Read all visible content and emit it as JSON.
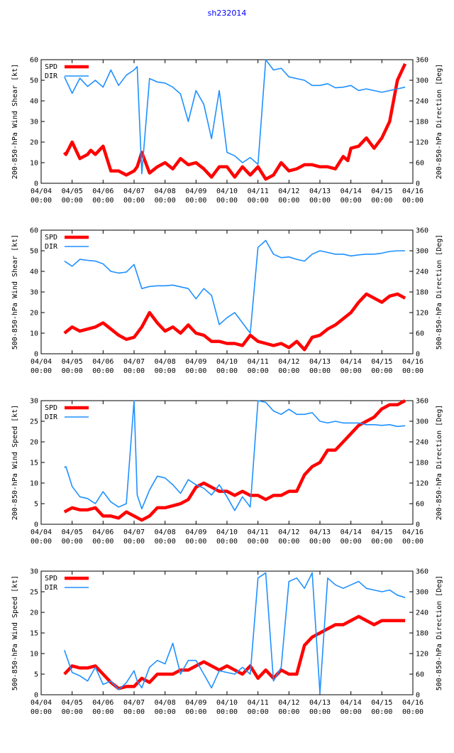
{
  "title": "sh232014",
  "colors": {
    "spd": "#ff0000",
    "dir": "#1e90ff",
    "axis": "#000000"
  },
  "x_ticks": [
    [
      "04/04",
      "00:00"
    ],
    [
      "04/05",
      "00:00"
    ],
    [
      "04/06",
      "00:00"
    ],
    [
      "04/07",
      "00:00"
    ],
    [
      "04/08",
      "00:00"
    ],
    [
      "04/09",
      "00:00"
    ],
    [
      "04/10",
      "00:00"
    ],
    [
      "04/11",
      "00:00"
    ],
    [
      "04/12",
      "00:00"
    ],
    [
      "04/13",
      "00:00"
    ],
    [
      "04/14",
      "00:00"
    ],
    [
      "04/15",
      "00:00"
    ],
    [
      "04/16",
      "00:00"
    ]
  ],
  "chart_data": [
    {
      "type": "line",
      "ylabel": "200-850-hPa Wind Shear [kt]",
      "y2label": "200-850-hPa Direction [Deg]",
      "ylim": [
        0,
        60
      ],
      "yticks": [
        0,
        10,
        20,
        30,
        40,
        50,
        60
      ],
      "y2lim": [
        0,
        360
      ],
      "y2ticks": [
        0,
        60,
        120,
        180,
        240,
        300,
        360
      ],
      "xlim": [
        0,
        12
      ],
      "legend": [
        "SPD",
        "DIR"
      ],
      "series": [
        {
          "name": "SPD",
          "axis": "left",
          "x": [
            0.75,
            0.8,
            1.0,
            1.25,
            1.5,
            1.6,
            1.75,
            2.0,
            2.25,
            2.5,
            2.75,
            3.0,
            3.1,
            3.25,
            3.5,
            3.75,
            4.0,
            4.25,
            4.5,
            4.75,
            5.0,
            5.25,
            5.5,
            5.75,
            6.0,
            6.25,
            6.5,
            6.75,
            7.0,
            7.25,
            7.5,
            7.75,
            8.0,
            8.25,
            8.5,
            8.75,
            9.0,
            9.25,
            9.5,
            9.75,
            9.9,
            10.0,
            10.25,
            10.5,
            10.75,
            11.0,
            11.25,
            11.5,
            11.75
          ],
          "values": [
            15,
            14,
            20,
            12,
            14,
            16,
            14,
            18,
            6,
            6,
            4,
            6,
            8,
            15,
            5,
            8,
            10,
            7,
            12,
            9,
            10,
            7,
            3,
            8,
            8,
            3,
            8,
            4,
            8,
            2,
            4,
            10,
            6,
            7,
            9,
            9,
            8,
            8,
            7,
            13,
            11,
            17,
            18,
            22,
            17,
            22,
            30,
            50,
            58
          ]
        },
        {
          "name": "DIR",
          "axis": "right",
          "x": [
            0.75,
            1.0,
            1.25,
            1.5,
            1.75,
            2.0,
            2.25,
            2.5,
            2.75,
            3.0,
            3.1,
            3.25,
            3.5,
            3.75,
            4.0,
            4.25,
            4.5,
            4.75,
            5.0,
            5.25,
            5.5,
            5.75,
            6.0,
            6.25,
            6.5,
            6.75,
            7.0,
            7.25,
            7.5,
            7.75,
            8.0,
            8.25,
            8.5,
            8.75,
            9.0,
            9.25,
            9.5,
            9.75,
            10.0,
            10.25,
            10.5,
            10.75,
            11.0,
            11.25,
            11.5,
            11.75
          ],
          "values": [
            310,
            262,
            306,
            282,
            300,
            280,
            330,
            285,
            315,
            330,
            340,
            28,
            305,
            295,
            292,
            280,
            260,
            180,
            270,
            230,
            130,
            270,
            90,
            80,
            60,
            75,
            55,
            360,
            330,
            335,
            310,
            305,
            300,
            285,
            285,
            290,
            278,
            280,
            285,
            270,
            275,
            270,
            265,
            270,
            275,
            280
          ]
        }
      ]
    },
    {
      "type": "line",
      "ylabel": "500-850-hPa Wind Shear [kt]",
      "y2label": "500-850-hPa Direction [Deg]",
      "ylim": [
        0,
        60
      ],
      "yticks": [
        0,
        10,
        20,
        30,
        40,
        50,
        60
      ],
      "y2lim": [
        0,
        360
      ],
      "y2ticks": [
        0,
        60,
        120,
        180,
        240,
        300,
        360
      ],
      "xlim": [
        0,
        12
      ],
      "legend": [
        "SPD",
        "DIR"
      ],
      "series": [
        {
          "name": "SPD",
          "axis": "left",
          "x": [
            0.75,
            1.0,
            1.25,
            1.5,
            1.75,
            2.0,
            2.25,
            2.5,
            2.75,
            3.0,
            3.25,
            3.5,
            3.75,
            4.0,
            4.25,
            4.5,
            4.75,
            5.0,
            5.25,
            5.5,
            5.75,
            6.0,
            6.25,
            6.5,
            6.75,
            7.0,
            7.25,
            7.5,
            7.75,
            8.0,
            8.25,
            8.5,
            8.75,
            9.0,
            9.25,
            9.5,
            9.75,
            10.0,
            10.25,
            10.5,
            10.75,
            11.0,
            11.25,
            11.5,
            11.75
          ],
          "values": [
            10,
            13,
            11,
            12,
            13,
            15,
            12,
            9,
            7,
            8,
            13,
            20,
            15,
            11,
            13,
            10,
            14,
            10,
            9,
            6,
            6,
            5,
            5,
            4,
            9,
            6,
            5,
            4,
            5,
            3,
            6,
            2,
            8,
            9,
            12,
            14,
            17,
            20,
            25,
            29,
            27,
            25,
            28,
            29,
            27
          ]
        },
        {
          "name": "DIR",
          "axis": "right",
          "x": [
            0.75,
            1.0,
            1.25,
            1.5,
            1.75,
            2.0,
            2.25,
            2.5,
            2.75,
            3.0,
            3.25,
            3.5,
            3.75,
            4.0,
            4.25,
            4.5,
            4.75,
            5.0,
            5.25,
            5.5,
            5.75,
            6.0,
            6.25,
            6.5,
            6.75,
            7.0,
            7.25,
            7.5,
            7.75,
            8.0,
            8.25,
            8.5,
            8.75,
            9.0,
            9.25,
            9.5,
            9.75,
            10.0,
            10.25,
            10.5,
            10.75,
            11.0,
            11.25,
            11.5,
            11.75
          ],
          "values": [
            270,
            255,
            275,
            272,
            270,
            262,
            240,
            235,
            238,
            260,
            190,
            196,
            198,
            198,
            200,
            195,
            190,
            160,
            190,
            170,
            85,
            105,
            120,
            90,
            60,
            310,
            330,
            290,
            280,
            282,
            275,
            270,
            290,
            300,
            295,
            290,
            290,
            285,
            288,
            290,
            290,
            293,
            298,
            300,
            300
          ]
        }
      ]
    },
    {
      "type": "line",
      "ylabel": "200-850-hPa Wind Speed [kt]",
      "y2label": "200-850-hPa Direction [Deg]",
      "ylim": [
        0,
        30
      ],
      "yticks": [
        0,
        5,
        10,
        15,
        20,
        25,
        30
      ],
      "y2lim": [
        0,
        360
      ],
      "y2ticks": [
        0,
        60,
        120,
        180,
        240,
        300,
        360
      ],
      "xlim": [
        0,
        12
      ],
      "legend": [
        "SPD",
        "DIR"
      ],
      "series": [
        {
          "name": "SPD",
          "axis": "left",
          "x": [
            0.75,
            1.0,
            1.25,
            1.5,
            1.75,
            2.0,
            2.25,
            2.5,
            2.75,
            3.0,
            3.25,
            3.5,
            3.75,
            4.0,
            4.25,
            4.5,
            4.75,
            5.0,
            5.25,
            5.5,
            5.75,
            6.0,
            6.25,
            6.5,
            6.75,
            7.0,
            7.25,
            7.5,
            7.75,
            8.0,
            8.25,
            8.5,
            8.75,
            9.0,
            9.25,
            9.5,
            9.75,
            10.0,
            10.25,
            10.5,
            10.75,
            11.0,
            11.25,
            11.5,
            11.75
          ],
          "values": [
            3,
            4,
            3.5,
            3.5,
            4,
            2,
            2,
            1.5,
            3,
            2,
            1,
            2,
            4,
            4,
            4.5,
            5,
            6,
            9,
            10,
            9,
            8,
            8,
            7,
            8,
            7,
            7,
            6,
            7,
            7,
            8,
            8,
            12,
            14,
            15,
            18,
            18,
            20,
            22,
            24,
            25,
            26,
            28,
            29,
            29,
            30
          ]
        },
        {
          "name": "DIR",
          "axis": "right",
          "x": [
            0.75,
            0.8,
            1.0,
            1.25,
            1.5,
            1.75,
            2.0,
            2.25,
            2.5,
            2.75,
            3.0,
            3.1,
            3.25,
            3.5,
            3.75,
            4.0,
            4.25,
            4.5,
            4.75,
            5.0,
            5.25,
            5.5,
            5.75,
            6.0,
            6.25,
            6.5,
            6.75,
            7.0,
            7.25,
            7.5,
            7.75,
            8.0,
            8.25,
            8.5,
            8.75,
            9.0,
            9.25,
            9.5,
            9.75,
            10.0,
            10.25,
            10.5,
            10.75,
            11.0,
            11.25,
            11.5,
            11.75
          ],
          "values": [
            165,
            168,
            110,
            80,
            75,
            60,
            95,
            65,
            50,
            60,
            360,
            85,
            45,
            100,
            140,
            135,
            115,
            90,
            130,
            115,
            105,
            85,
            115,
            80,
            40,
            80,
            50,
            360,
            355,
            330,
            320,
            335,
            320,
            320,
            325,
            300,
            295,
            300,
            295,
            295,
            295,
            290,
            290,
            288,
            290,
            285,
            287
          ]
        }
      ]
    },
    {
      "type": "line",
      "ylabel": "500-850-hPa Wind Speed [kt]",
      "y2label": "500-850-hPa Direction [Deg]",
      "ylim": [
        0,
        30
      ],
      "yticks": [
        0,
        5,
        10,
        15,
        20,
        25,
        30
      ],
      "y2lim": [
        0,
        360
      ],
      "y2ticks": [
        0,
        60,
        120,
        180,
        240,
        300,
        360
      ],
      "xlim": [
        0,
        12
      ],
      "legend": [
        "SPD",
        "DIR"
      ],
      "series": [
        {
          "name": "SPD",
          "axis": "left",
          "x": [
            0.75,
            1.0,
            1.25,
            1.5,
            1.75,
            2.0,
            2.25,
            2.5,
            2.75,
            3.0,
            3.25,
            3.5,
            3.75,
            4.0,
            4.25,
            4.5,
            4.75,
            5.0,
            5.25,
            5.5,
            5.75,
            6.0,
            6.25,
            6.5,
            6.75,
            7.0,
            7.25,
            7.5,
            7.75,
            8.0,
            8.25,
            8.5,
            8.75,
            9.0,
            9.25,
            9.5,
            9.75,
            10.0,
            10.25,
            10.5,
            10.75,
            11.0,
            11.25,
            11.5,
            11.75
          ],
          "values": [
            5,
            7,
            6.5,
            6.5,
            7,
            5,
            3,
            1.5,
            2,
            2,
            4,
            3,
            5,
            5,
            5,
            6,
            6,
            7,
            8,
            7,
            6,
            7,
            6,
            5,
            7,
            4,
            6,
            4,
            6,
            5,
            5,
            12,
            14,
            15,
            16,
            17,
            17,
            18,
            19,
            18,
            17,
            18,
            18,
            18,
            18
          ]
        },
        {
          "name": "DIR",
          "axis": "right",
          "x": [
            0.75,
            1.0,
            1.25,
            1.5,
            1.75,
            2.0,
            2.25,
            2.5,
            2.75,
            3.0,
            3.1,
            3.25,
            3.5,
            3.75,
            4.0,
            4.25,
            4.5,
            4.75,
            5.0,
            5.25,
            5.5,
            5.75,
            6.0,
            6.25,
            6.5,
            6.75,
            7.0,
            7.25,
            7.5,
            7.75,
            8.0,
            8.25,
            8.5,
            8.75,
            9.0,
            9.25,
            9.5,
            9.75,
            10.0,
            10.25,
            10.5,
            10.75,
            11.0,
            11.25,
            11.5,
            11.75
          ],
          "values": [
            130,
            65,
            55,
            40,
            80,
            30,
            40,
            15,
            35,
            70,
            40,
            20,
            80,
            100,
            90,
            150,
            60,
            100,
            100,
            60,
            20,
            70,
            65,
            60,
            80,
            60,
            340,
            355,
            40,
            80,
            330,
            340,
            310,
            355,
            5,
            340,
            320,
            310,
            320,
            330,
            310,
            305,
            300,
            305,
            290,
            283
          ]
        }
      ]
    }
  ]
}
